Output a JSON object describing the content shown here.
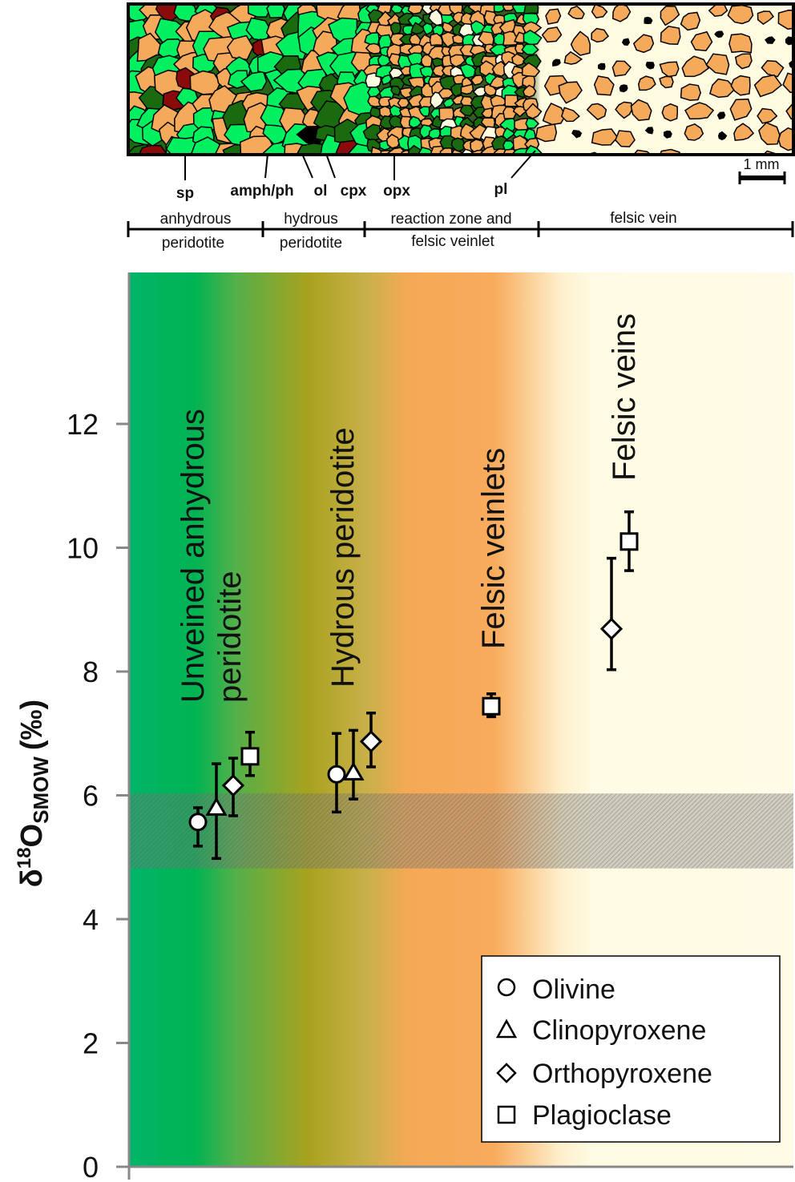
{
  "microstructure": {
    "mineral_labels": [
      "sp",
      "amph/ph",
      "ol",
      "cpx",
      "opx",
      "pl"
    ],
    "scale_bar": "1 mm",
    "zones": [
      {
        "top": "anhydrous",
        "bottom": "peridotite"
      },
      {
        "top": "hydrous",
        "bottom": "peridotite"
      },
      {
        "top": "reaction zone and",
        "bottom": "felsic veinlet"
      },
      {
        "top": "felsic vein",
        "bottom": ""
      }
    ],
    "colors": {
      "olivine": "#00f060",
      "cpx_dark": "#1a6b10",
      "opx": "#f5a95a",
      "amph": "#8b0a0a",
      "spinel": "#000000",
      "vein": "#fffbe0"
    }
  },
  "chart_data": {
    "type": "scatter",
    "title": "",
    "xlabel": "",
    "ylabel": "δ18OSMOW (‰)",
    "ylabel_parts": {
      "delta": "δ",
      "mass": "18",
      "element": "O",
      "subscript": "SMOW",
      "unit": "(‰)"
    },
    "ylim": [
      0,
      14.4
    ],
    "yticks": [
      "0",
      "2",
      "4",
      "6",
      "8",
      "10",
      "12"
    ],
    "grid": false,
    "mantle_range": [
      4.82,
      6.03
    ],
    "groups": [
      {
        "name": "Unveined anhydrous peridotite",
        "lines": [
          "Unveined anhydrous",
          "peridotite"
        ]
      },
      {
        "name": "Hydrous peridotite",
        "lines": [
          "Hydrous peridotite"
        ]
      },
      {
        "name": "Felsic veinlets",
        "lines": [
          "Felsic veinlets"
        ]
      },
      {
        "name": "Felsic veins",
        "lines": [
          "Felsic veins"
        ]
      }
    ],
    "series": [
      {
        "name": "Olivine",
        "marker": "circle",
        "points": [
          {
            "group": 0,
            "y": 5.57,
            "err_hi": 5.8,
            "err_lo": 5.18
          },
          {
            "group": 1,
            "y": 6.34,
            "err_hi": 7.0,
            "err_lo": 5.73
          }
        ]
      },
      {
        "name": "Clinopyroxene",
        "marker": "triangle",
        "points": [
          {
            "group": 0,
            "y": 5.73,
            "err_hi": 6.51,
            "err_lo": 4.98
          },
          {
            "group": 1,
            "y": 6.3,
            "err_hi": 7.05,
            "err_lo": 5.94
          }
        ]
      },
      {
        "name": "Orthopyroxene",
        "marker": "diamond",
        "points": [
          {
            "group": 0,
            "y": 6.16,
            "err_hi": 6.6,
            "err_lo": 5.67
          },
          {
            "group": 1,
            "y": 6.87,
            "err_hi": 7.33,
            "err_lo": 6.46
          },
          {
            "group": 3,
            "y": 8.69,
            "err_hi": 9.83,
            "err_lo": 8.03
          }
        ]
      },
      {
        "name": "Plagioclase",
        "marker": "square",
        "points": [
          {
            "group": 0,
            "y": 6.63,
            "err_hi": 7.02,
            "err_lo": 6.32
          },
          {
            "group": 2,
            "y": 7.44,
            "err_hi": 7.64,
            "err_lo": 7.27
          },
          {
            "group": 3,
            "y": 10.1,
            "err_hi": 10.58,
            "err_lo": 9.63
          }
        ]
      }
    ],
    "legend": {
      "placement": "bottom-right",
      "entries": [
        "Olivine",
        "Clinopyroxene",
        "Orthopyroxene",
        "Plagioclase"
      ]
    }
  }
}
